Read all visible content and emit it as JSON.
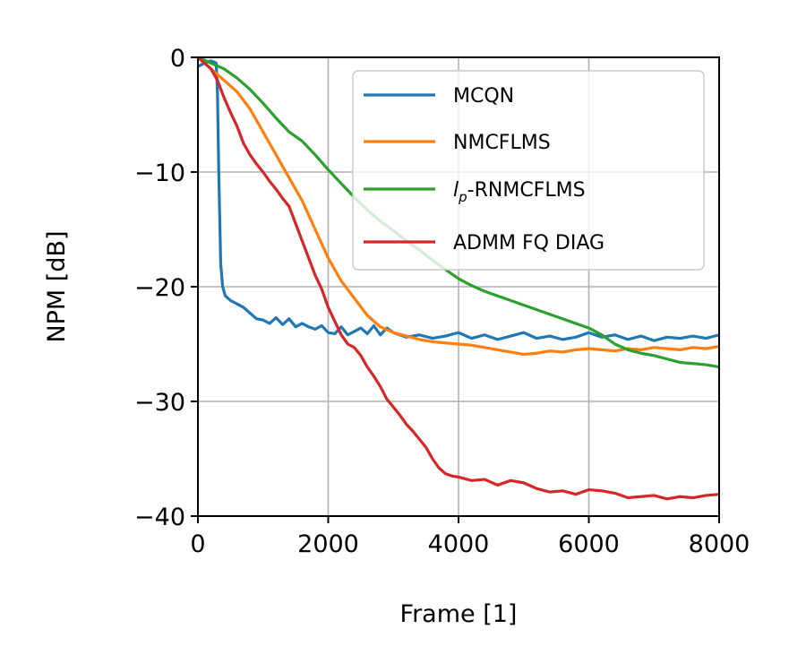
{
  "chart_data": {
    "type": "line",
    "xlabel": "Frame [1]",
    "ylabel": "NPM [dB]",
    "xlim": [
      0,
      8000
    ],
    "ylim": [
      -40,
      0
    ],
    "xticks": [
      0,
      2000,
      4000,
      6000,
      8000
    ],
    "yticks": [
      0,
      -10,
      -20,
      -30,
      -40
    ],
    "xtick_labels": [
      "0",
      "2000",
      "4000",
      "6000",
      "8000"
    ],
    "ytick_labels": [
      "0",
      "−10",
      "−20",
      "−30",
      "−40"
    ],
    "grid": true,
    "legend_position": "top-right",
    "series": [
      {
        "name": "MCQN",
        "color": "#1f77b4",
        "x": [
          0,
          100,
          200,
          280,
          300,
          320,
          350,
          380,
          420,
          500,
          600,
          700,
          800,
          900,
          1000,
          1100,
          1200,
          1300,
          1400,
          1500,
          1600,
          1700,
          1800,
          1900,
          2000,
          2100,
          2200,
          2300,
          2400,
          2500,
          2600,
          2700,
          2800,
          2900,
          3000,
          3200,
          3400,
          3600,
          3800,
          4000,
          4200,
          4400,
          4600,
          4800,
          5000,
          5200,
          5400,
          5600,
          5800,
          6000,
          6200,
          6400,
          6600,
          6800,
          7000,
          7200,
          7400,
          7600,
          7800,
          8000
        ],
        "y": [
          -0.8,
          -0.5,
          -0.3,
          -0.5,
          -3,
          -10,
          -18,
          -20,
          -20.8,
          -21.2,
          -21.5,
          -21.8,
          -22.3,
          -22.8,
          -22.9,
          -23.2,
          -22.7,
          -23.3,
          -22.8,
          -23.5,
          -23.2,
          -23.5,
          -23.7,
          -23.4,
          -24.0,
          -24.1,
          -23.5,
          -24.2,
          -23.9,
          -23.6,
          -24.1,
          -23.4,
          -24.2,
          -23.6,
          -24.0,
          -24.4,
          -24.2,
          -24.5,
          -24.3,
          -24.0,
          -24.5,
          -24.2,
          -24.6,
          -24.3,
          -24.0,
          -24.5,
          -24.3,
          -24.6,
          -24.4,
          -24.0,
          -24.4,
          -24.2,
          -24.6,
          -24.3,
          -24.7,
          -24.4,
          -24.5,
          -24.3,
          -24.5,
          -24.2
        ]
      },
      {
        "name": "NMCFLMS",
        "color": "#ff7f0e",
        "x": [
          0,
          200,
          400,
          600,
          800,
          1000,
          1200,
          1400,
          1600,
          1800,
          2000,
          2200,
          2400,
          2600,
          2800,
          3000,
          3200,
          3400,
          3600,
          3800,
          4000,
          4200,
          4400,
          4600,
          4800,
          5000,
          5200,
          5400,
          5600,
          5800,
          6000,
          6200,
          6400,
          6600,
          6800,
          7000,
          7200,
          7400,
          7600,
          7800,
          8000
        ],
        "y": [
          0,
          -1,
          -2,
          -3,
          -4.5,
          -6.5,
          -8.5,
          -10.5,
          -12.5,
          -15,
          -17.5,
          -19.5,
          -21,
          -22.5,
          -23.5,
          -24,
          -24.3,
          -24.6,
          -24.8,
          -24.9,
          -25.0,
          -25.1,
          -25.3,
          -25.5,
          -25.7,
          -25.9,
          -25.8,
          -25.6,
          -25.7,
          -25.5,
          -25.4,
          -25.5,
          -25.6,
          -25.4,
          -25.5,
          -25.3,
          -25.4,
          -25.5,
          -25.3,
          -25.4,
          -25.2
        ]
      },
      {
        "name": "l_p-RNMCFLMS",
        "name_main": "l",
        "name_sub": "p",
        "name_rest": "-RNMCFLMS",
        "color": "#2ca02c",
        "x": [
          0,
          200,
          400,
          600,
          800,
          1000,
          1200,
          1400,
          1600,
          1800,
          2000,
          2200,
          2400,
          2600,
          2800,
          3000,
          3200,
          3400,
          3600,
          3800,
          4000,
          4200,
          4400,
          4600,
          4800,
          5000,
          5200,
          5400,
          5600,
          5800,
          6000,
          6200,
          6400,
          6600,
          6800,
          7000,
          7200,
          7400,
          7600,
          7800,
          8000
        ],
        "y": [
          0,
          -0.5,
          -1,
          -1.8,
          -2.8,
          -4,
          -5.3,
          -6.5,
          -7.3,
          -8.5,
          -9.8,
          -11,
          -12.2,
          -13.3,
          -14.3,
          -15.1,
          -16,
          -16.8,
          -17.7,
          -18.5,
          -19.3,
          -19.9,
          -20.4,
          -20.8,
          -21.2,
          -21.6,
          -22,
          -22.4,
          -22.8,
          -23.2,
          -23.6,
          -24.2,
          -25,
          -25.5,
          -25.8,
          -26.0,
          -26.3,
          -26.6,
          -26.7,
          -26.8,
          -27.0
        ]
      },
      {
        "name": "ADMM FQ DIAG",
        "color": "#d62728",
        "x": [
          0,
          100,
          200,
          300,
          400,
          500,
          600,
          700,
          800,
          900,
          1000,
          1100,
          1200,
          1300,
          1400,
          1500,
          1600,
          1700,
          1800,
          1900,
          2000,
          2100,
          2200,
          2300,
          2400,
          2500,
          2600,
          2700,
          2800,
          2900,
          3000,
          3100,
          3200,
          3300,
          3400,
          3500,
          3600,
          3700,
          3800,
          3900,
          4000,
          4200,
          4400,
          4600,
          4800,
          5000,
          5200,
          5400,
          5600,
          5800,
          6000,
          6200,
          6400,
          6600,
          6800,
          7000,
          7200,
          7400,
          7600,
          7800,
          8000
        ],
        "y": [
          0,
          -0.5,
          -1,
          -2,
          -3.5,
          -4.8,
          -6,
          -7.5,
          -8.5,
          -9.3,
          -10,
          -10.8,
          -11.5,
          -12.3,
          -13,
          -14.5,
          -16,
          -17.5,
          -19,
          -20.2,
          -21.8,
          -23,
          -24.2,
          -25,
          -25.3,
          -26,
          -27,
          -27.8,
          -28.7,
          -29.8,
          -30.5,
          -31.2,
          -32,
          -32.6,
          -33.3,
          -34,
          -35,
          -35.8,
          -36.3,
          -36.5,
          -36.6,
          -36.9,
          -36.8,
          -37.3,
          -36.9,
          -37.1,
          -37.6,
          -37.9,
          -37.8,
          -38.1,
          -37.7,
          -37.8,
          -38.0,
          -38.4,
          -38.3,
          -38.2,
          -38.5,
          -38.3,
          -38.4,
          -38.2,
          -38.1
        ]
      }
    ]
  }
}
